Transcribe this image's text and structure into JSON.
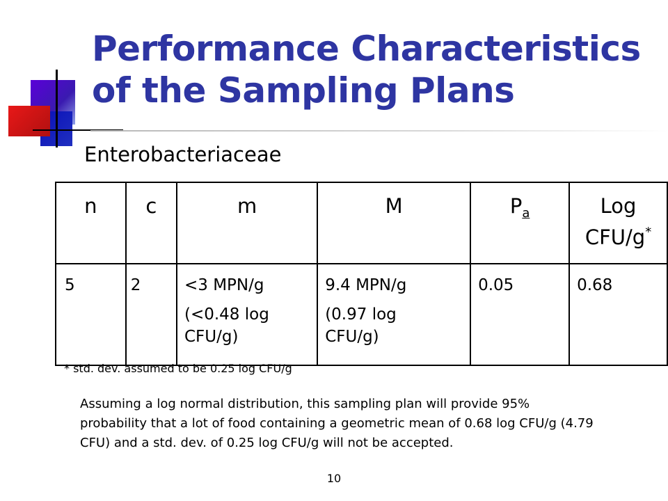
{
  "slide": {
    "title": "Performance Characteristics of the Sampling Plans",
    "subtitle": "Enterobacteriaceae",
    "page_number": "10"
  },
  "table": {
    "headers": {
      "n": "n",
      "c": "c",
      "m": "m",
      "M": "M",
      "pa_main": "P",
      "pa_sub": "a",
      "log_line1": "Log",
      "log_line2": "CFU/g",
      "log_mark": "*"
    },
    "row": {
      "n": "5",
      "c": "2",
      "m_line1": "<3 MPN/g",
      "m_line2": "(<0.48 log",
      "m_line3": "CFU/g)",
      "M_line1": "9.4 MPN/g",
      "M_line2": "(0.97 log",
      "M_line3": "CFU/g)",
      "pa": "0.05",
      "log": "0.68"
    }
  },
  "footnote": "* std. dev. assumed to be 0.25 log CFU/g",
  "paragraph": "Assuming a log normal distribution, this sampling plan will provide 95% probability that a lot of food containing a geometric mean of 0.68 log CFU/g (4.79 CFU) and a std. dev. of 0.25 log CFU/g will not be accepted.",
  "colors": {
    "title": "#2e35a2",
    "deco_purple": "#5a00d8",
    "deco_blue": "#0a10b8",
    "deco_red": "#e81818"
  }
}
